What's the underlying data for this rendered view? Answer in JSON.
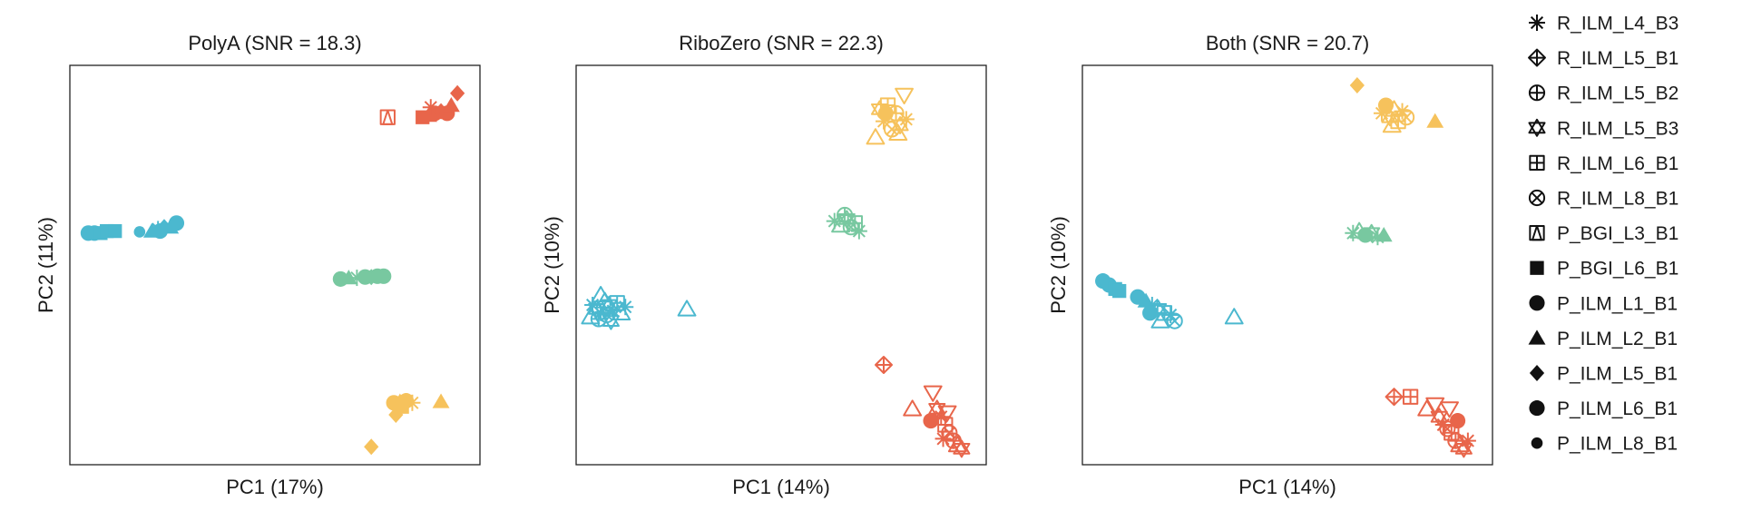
{
  "colors": {
    "cluster_blue": "#4bb8cf",
    "cluster_green": "#78c8a0",
    "cluster_red": "#e8654a",
    "cluster_yellow": "#f6c25c",
    "legend_marker": "#111111",
    "frame": "#222222"
  },
  "legend": {
    "placement": "right",
    "entries": [
      {
        "label": "R_ILM_L4_B3",
        "marker": "asterisk"
      },
      {
        "label": "R_ILM_L5_B1",
        "marker": "diamond-plus"
      },
      {
        "label": "R_ILM_L5_B2",
        "marker": "circle-plus"
      },
      {
        "label": "R_ILM_L5_B3",
        "marker": "hexagram"
      },
      {
        "label": "R_ILM_L6_B1",
        "marker": "square-plus"
      },
      {
        "label": "R_ILM_L8_B1",
        "marker": "circle-x"
      },
      {
        "label": "P_BGI_L3_B1",
        "marker": "square-slash"
      },
      {
        "label": "P_BGI_L6_B1",
        "marker": "square-filled"
      },
      {
        "label": "P_ILM_L1_B1",
        "marker": "circle-filled"
      },
      {
        "label": "P_ILM_L2_B1",
        "marker": "triangle-filled"
      },
      {
        "label": "P_ILM_L5_B1",
        "marker": "diamond-filled"
      },
      {
        "label": "P_ILM_L6_B1",
        "marker": "circle-filled"
      },
      {
        "label": "P_ILM_L8_B1",
        "marker": "circle-filled-small"
      }
    ]
  },
  "chart_data": [
    {
      "type": "scatter",
      "title": "PolyA (SNR = 18.3)",
      "xlabel": "PC1 (17%)",
      "ylabel": "PC2 (11%)",
      "xlim": [
        0,
        100
      ],
      "ylim": [
        0,
        100
      ],
      "ticks": "none",
      "grid": false,
      "points": [
        {
          "x": 4.5,
          "y": 58,
          "marker": "circle-filled",
          "color": "cluster_blue"
        },
        {
          "x": 6,
          "y": 58,
          "marker": "circle-filled",
          "color": "cluster_blue"
        },
        {
          "x": 7.5,
          "y": 58,
          "marker": "square-filled",
          "color": "cluster_blue"
        },
        {
          "x": 9,
          "y": 58.5,
          "marker": "square-filled",
          "color": "cluster_blue"
        },
        {
          "x": 11,
          "y": 58.5,
          "marker": "square-filled",
          "color": "cluster_blue"
        },
        {
          "x": 17,
          "y": 58.3,
          "marker": "circle-filled-small",
          "color": "cluster_blue"
        },
        {
          "x": 20,
          "y": 58.5,
          "marker": "triangle-filled",
          "color": "cluster_blue"
        },
        {
          "x": 21.5,
          "y": 59,
          "marker": "asterisk",
          "color": "cluster_blue"
        },
        {
          "x": 23,
          "y": 59.5,
          "marker": "diamond-filled",
          "color": "cluster_blue"
        },
        {
          "x": 24.5,
          "y": 59.5,
          "marker": "triangle-filled",
          "color": "cluster_blue"
        },
        {
          "x": 26,
          "y": 60.5,
          "marker": "circle-filled",
          "color": "cluster_blue"
        },
        {
          "x": 22,
          "y": 58.5,
          "marker": "circle-filled",
          "color": "cluster_blue"
        },
        {
          "x": 66,
          "y": 46.5,
          "marker": "circle-filled",
          "color": "cluster_green"
        },
        {
          "x": 68,
          "y": 46.8,
          "marker": "triangle-filled",
          "color": "cluster_green"
        },
        {
          "x": 70,
          "y": 46.8,
          "marker": "asterisk",
          "color": "cluster_green"
        },
        {
          "x": 72,
          "y": 47,
          "marker": "circle-filled",
          "color": "cluster_green"
        },
        {
          "x": 73.5,
          "y": 47,
          "marker": "diamond-filled",
          "color": "cluster_green"
        },
        {
          "x": 75,
          "y": 47.2,
          "marker": "circle-filled",
          "color": "cluster_green"
        },
        {
          "x": 76.5,
          "y": 47.2,
          "marker": "circle-filled",
          "color": "cluster_green"
        },
        {
          "x": 77.5,
          "y": 87,
          "marker": "square-slash",
          "color": "cluster_red"
        },
        {
          "x": 86,
          "y": 87,
          "marker": "square-filled",
          "color": "cluster_red"
        },
        {
          "x": 87.5,
          "y": 87.5,
          "marker": "triangle-filled",
          "color": "cluster_red"
        },
        {
          "x": 89,
          "y": 88,
          "marker": "circle-filled",
          "color": "cluster_red"
        },
        {
          "x": 90.5,
          "y": 88.5,
          "marker": "diamond-filled",
          "color": "cluster_red"
        },
        {
          "x": 92,
          "y": 88,
          "marker": "circle-filled",
          "color": "cluster_red"
        },
        {
          "x": 93,
          "y": 90,
          "marker": "triangle-filled",
          "color": "cluster_red"
        },
        {
          "x": 94.5,
          "y": 93,
          "marker": "diamond-filled",
          "color": "cluster_red"
        },
        {
          "x": 88,
          "y": 89.5,
          "marker": "asterisk",
          "color": "cluster_red"
        },
        {
          "x": 79,
          "y": 15.5,
          "marker": "circle-filled",
          "color": "cluster_yellow"
        },
        {
          "x": 80.5,
          "y": 15.8,
          "marker": "triangle-filled",
          "color": "cluster_yellow"
        },
        {
          "x": 82,
          "y": 16,
          "marker": "circle-filled",
          "color": "cluster_yellow"
        },
        {
          "x": 83.5,
          "y": 15.5,
          "marker": "asterisk",
          "color": "cluster_yellow"
        },
        {
          "x": 81,
          "y": 14.5,
          "marker": "square-filled",
          "color": "cluster_yellow"
        },
        {
          "x": 79.5,
          "y": 12.5,
          "marker": "diamond-filled",
          "color": "cluster_yellow"
        },
        {
          "x": 90.5,
          "y": 15.8,
          "marker": "triangle-filled",
          "color": "cluster_yellow"
        },
        {
          "x": 73.5,
          "y": 4.5,
          "marker": "diamond-filled",
          "color": "cluster_yellow"
        }
      ]
    },
    {
      "type": "scatter",
      "title": "RiboZero (SNR = 22.3)",
      "xlabel": "PC1 (14%)",
      "ylabel": "PC2 (10%)",
      "xlim": [
        0,
        100
      ],
      "ylim": [
        0,
        100
      ],
      "ticks": "none",
      "grid": false,
      "points": [
        {
          "x": 3.5,
          "y": 37,
          "marker": "triangle-open",
          "color": "cluster_blue"
        },
        {
          "x": 4,
          "y": 40,
          "marker": "asterisk",
          "color": "cluster_blue"
        },
        {
          "x": 5,
          "y": 39,
          "marker": "hexagram",
          "color": "cluster_blue"
        },
        {
          "x": 6,
          "y": 38,
          "marker": "asterisk",
          "color": "cluster_blue"
        },
        {
          "x": 7,
          "y": 41,
          "marker": "triangle-open",
          "color": "cluster_blue"
        },
        {
          "x": 7.5,
          "y": 37.5,
          "marker": "circle-x",
          "color": "cluster_blue"
        },
        {
          "x": 8,
          "y": 40,
          "marker": "hexagram",
          "color": "cluster_blue"
        },
        {
          "x": 9,
          "y": 38.5,
          "marker": "asterisk",
          "color": "cluster_blue"
        },
        {
          "x": 10,
          "y": 40.5,
          "marker": "square-plus",
          "color": "cluster_blue"
        },
        {
          "x": 11,
          "y": 38,
          "marker": "triangle-open",
          "color": "cluster_blue"
        },
        {
          "x": 12,
          "y": 39.5,
          "marker": "asterisk",
          "color": "cluster_blue"
        },
        {
          "x": 6,
          "y": 42.5,
          "marker": "triangle-open",
          "color": "cluster_blue"
        },
        {
          "x": 8.5,
          "y": 36,
          "marker": "hexagram",
          "color": "cluster_blue"
        },
        {
          "x": 5.5,
          "y": 36.5,
          "marker": "circle-plus",
          "color": "cluster_blue"
        },
        {
          "x": 27,
          "y": 39,
          "marker": "triangle-open",
          "color": "cluster_blue"
        },
        {
          "x": 63,
          "y": 61,
          "marker": "asterisk",
          "color": "cluster_green"
        },
        {
          "x": 64.5,
          "y": 60,
          "marker": "triangle-open",
          "color": "cluster_green"
        },
        {
          "x": 66,
          "y": 61.5,
          "marker": "hexagram",
          "color": "cluster_green"
        },
        {
          "x": 67,
          "y": 59.5,
          "marker": "circle-x",
          "color": "cluster_green"
        },
        {
          "x": 68,
          "y": 60.5,
          "marker": "square-plus",
          "color": "cluster_green"
        },
        {
          "x": 69,
          "y": 58.5,
          "marker": "asterisk",
          "color": "cluster_green"
        },
        {
          "x": 65.5,
          "y": 62.5,
          "marker": "circle-plus",
          "color": "cluster_green"
        },
        {
          "x": 73,
          "y": 82,
          "marker": "triangle-open",
          "color": "cluster_yellow"
        },
        {
          "x": 74,
          "y": 89,
          "marker": "hexagram",
          "color": "cluster_yellow"
        },
        {
          "x": 75,
          "y": 86,
          "marker": "asterisk",
          "color": "cluster_yellow"
        },
        {
          "x": 76,
          "y": 90,
          "marker": "square-plus",
          "color": "cluster_yellow"
        },
        {
          "x": 77,
          "y": 84,
          "marker": "circle-x",
          "color": "cluster_yellow"
        },
        {
          "x": 78,
          "y": 88,
          "marker": "circle-plus",
          "color": "cluster_yellow"
        },
        {
          "x": 79,
          "y": 85,
          "marker": "hexagram",
          "color": "cluster_yellow"
        },
        {
          "x": 80,
          "y": 92.5,
          "marker": "triangle-down-open",
          "color": "cluster_yellow"
        },
        {
          "x": 80.5,
          "y": 86.5,
          "marker": "asterisk",
          "color": "cluster_yellow"
        },
        {
          "x": 78.5,
          "y": 83,
          "marker": "triangle-open",
          "color": "cluster_yellow"
        },
        {
          "x": 75.5,
          "y": 88,
          "marker": "circle-filled",
          "color": "cluster_yellow"
        },
        {
          "x": 75,
          "y": 25,
          "marker": "diamond-plus",
          "color": "cluster_red"
        },
        {
          "x": 82,
          "y": 14,
          "marker": "triangle-open",
          "color": "cluster_red"
        },
        {
          "x": 87,
          "y": 18,
          "marker": "triangle-down-open",
          "color": "cluster_red"
        },
        {
          "x": 88,
          "y": 14,
          "marker": "hexagram",
          "color": "cluster_red"
        },
        {
          "x": 89,
          "y": 12,
          "marker": "asterisk",
          "color": "cluster_red"
        },
        {
          "x": 90,
          "y": 10,
          "marker": "square-plus",
          "color": "cluster_red"
        },
        {
          "x": 91,
          "y": 8,
          "marker": "circle-x",
          "color": "cluster_red"
        },
        {
          "x": 92,
          "y": 6,
          "marker": "circle-plus",
          "color": "cluster_red"
        },
        {
          "x": 93,
          "y": 5,
          "marker": "triangle-open",
          "color": "cluster_red"
        },
        {
          "x": 94,
          "y": 4,
          "marker": "hexagram",
          "color": "cluster_red"
        },
        {
          "x": 90.5,
          "y": 13,
          "marker": "triangle-down-open",
          "color": "cluster_red"
        },
        {
          "x": 89.5,
          "y": 6.5,
          "marker": "asterisk",
          "color": "cluster_red"
        },
        {
          "x": 86.5,
          "y": 11,
          "marker": "circle-filled",
          "color": "cluster_red"
        }
      ]
    },
    {
      "type": "scatter",
      "title": "Both (SNR = 20.7)",
      "xlabel": "PC1 (14%)",
      "ylabel": "PC2 (10%)",
      "xlim": [
        0,
        100
      ],
      "ylim": [
        0,
        100
      ],
      "ticks": "none",
      "grid": false,
      "points": [
        {
          "x": 5,
          "y": 46,
          "marker": "circle-filled",
          "color": "cluster_blue"
        },
        {
          "x": 6.5,
          "y": 45,
          "marker": "circle-filled",
          "color": "cluster_blue"
        },
        {
          "x": 8,
          "y": 44,
          "marker": "square-filled",
          "color": "cluster_blue"
        },
        {
          "x": 9,
          "y": 43.5,
          "marker": "square-filled",
          "color": "cluster_blue"
        },
        {
          "x": 13.5,
          "y": 42,
          "marker": "circle-filled",
          "color": "cluster_blue"
        },
        {
          "x": 15.5,
          "y": 41,
          "marker": "triangle-filled",
          "color": "cluster_blue"
        },
        {
          "x": 17,
          "y": 40,
          "marker": "asterisk",
          "color": "cluster_blue"
        },
        {
          "x": 18.5,
          "y": 39,
          "marker": "hexagram",
          "color": "cluster_blue"
        },
        {
          "x": 20,
          "y": 38,
          "marker": "square-plus",
          "color": "cluster_blue"
        },
        {
          "x": 21.5,
          "y": 37.5,
          "marker": "asterisk",
          "color": "cluster_blue"
        },
        {
          "x": 19,
          "y": 36,
          "marker": "triangle-open",
          "color": "cluster_blue"
        },
        {
          "x": 22.5,
          "y": 36,
          "marker": "circle-x",
          "color": "cluster_blue"
        },
        {
          "x": 16.5,
          "y": 38,
          "marker": "circle-filled",
          "color": "cluster_blue"
        },
        {
          "x": 37,
          "y": 37,
          "marker": "triangle-open",
          "color": "cluster_blue"
        },
        {
          "x": 66,
          "y": 58,
          "marker": "asterisk",
          "color": "cluster_green"
        },
        {
          "x": 67.5,
          "y": 58.5,
          "marker": "triangle-open",
          "color": "cluster_green"
        },
        {
          "x": 69,
          "y": 57.5,
          "marker": "circle-filled",
          "color": "cluster_green"
        },
        {
          "x": 70.5,
          "y": 58,
          "marker": "hexagram",
          "color": "cluster_green"
        },
        {
          "x": 72,
          "y": 57,
          "marker": "asterisk",
          "color": "cluster_green"
        },
        {
          "x": 73.5,
          "y": 57.5,
          "marker": "triangle-filled",
          "color": "cluster_green"
        },
        {
          "x": 67,
          "y": 95,
          "marker": "diamond-filled",
          "color": "cluster_yellow"
        },
        {
          "x": 73,
          "y": 88,
          "marker": "asterisk",
          "color": "cluster_yellow"
        },
        {
          "x": 74,
          "y": 90,
          "marker": "circle-filled",
          "color": "cluster_yellow"
        },
        {
          "x": 75,
          "y": 87,
          "marker": "hexagram",
          "color": "cluster_yellow"
        },
        {
          "x": 76,
          "y": 89,
          "marker": "triangle-open",
          "color": "cluster_yellow"
        },
        {
          "x": 77,
          "y": 86,
          "marker": "square-plus",
          "color": "cluster_yellow"
        },
        {
          "x": 78,
          "y": 88.5,
          "marker": "asterisk",
          "color": "cluster_yellow"
        },
        {
          "x": 79,
          "y": 87,
          "marker": "circle-x",
          "color": "cluster_yellow"
        },
        {
          "x": 75.5,
          "y": 85,
          "marker": "triangle-open",
          "color": "cluster_yellow"
        },
        {
          "x": 86,
          "y": 86,
          "marker": "triangle-filled",
          "color": "cluster_yellow"
        },
        {
          "x": 76,
          "y": 17,
          "marker": "diamond-plus",
          "color": "cluster_red"
        },
        {
          "x": 80,
          "y": 17,
          "marker": "square-plus",
          "color": "cluster_red"
        },
        {
          "x": 84,
          "y": 14,
          "marker": "triangle-open",
          "color": "cluster_red"
        },
        {
          "x": 86,
          "y": 15,
          "marker": "triangle-down-open",
          "color": "cluster_red"
        },
        {
          "x": 87,
          "y": 12,
          "marker": "hexagram",
          "color": "cluster_red"
        },
        {
          "x": 88,
          "y": 10,
          "marker": "asterisk",
          "color": "cluster_red"
        },
        {
          "x": 89,
          "y": 9,
          "marker": "circle-x",
          "color": "cluster_red"
        },
        {
          "x": 90,
          "y": 8,
          "marker": "square-plus",
          "color": "cluster_red"
        },
        {
          "x": 91,
          "y": 6,
          "marker": "circle-plus",
          "color": "cluster_red"
        },
        {
          "x": 92,
          "y": 5,
          "marker": "triangle-open",
          "color": "cluster_red"
        },
        {
          "x": 93,
          "y": 4,
          "marker": "hexagram",
          "color": "cluster_red"
        },
        {
          "x": 94,
          "y": 6,
          "marker": "asterisk",
          "color": "cluster_red"
        },
        {
          "x": 89.5,
          "y": 14,
          "marker": "triangle-down-open",
          "color": "cluster_red"
        },
        {
          "x": 91.5,
          "y": 11,
          "marker": "circle-filled",
          "color": "cluster_red"
        }
      ]
    }
  ]
}
